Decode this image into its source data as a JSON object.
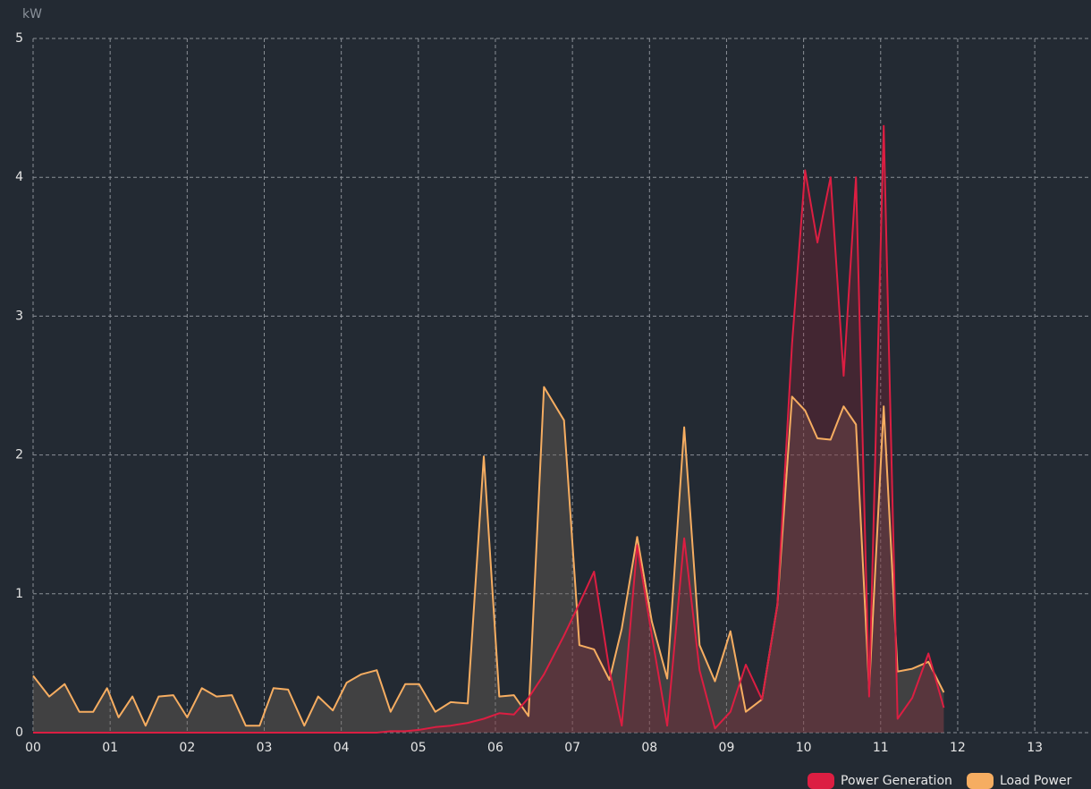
{
  "chart_data": {
    "type": "area",
    "y_label": "kW",
    "x": [
      0,
      0.21,
      0.41,
      0.6,
      0.78,
      0.96,
      1.11,
      1.29,
      1.46,
      1.63,
      1.82,
      2.0,
      2.19,
      2.38,
      2.58,
      2.76,
      2.94,
      3.12,
      3.31,
      3.52,
      3.7,
      3.89,
      4.07,
      4.26,
      4.46,
      4.64,
      4.83,
      5.01,
      5.22,
      5.42,
      5.64,
      5.85,
      6.05,
      6.24,
      6.43,
      6.63,
      6.89,
      7.09,
      7.28,
      7.48,
      7.64,
      7.84,
      8.03,
      8.23,
      8.45,
      8.65,
      8.85,
      9.05,
      9.25,
      9.46,
      9.66,
      9.85,
      10.02,
      10.18,
      10.35,
      10.52,
      10.68,
      10.85,
      11.04,
      11.22,
      11.41,
      11.62,
      11.82
    ],
    "series": [
      {
        "name": "Power Generation",
        "color": "#dc1e42",
        "fill": "rgba(150,30,50,0.28)",
        "values": [
          0,
          0,
          0,
          0,
          0,
          0,
          0,
          0,
          0,
          0,
          0,
          0,
          0,
          0,
          0,
          0,
          0,
          0,
          0,
          0,
          0,
          0,
          0,
          0,
          0,
          0.01,
          0.01,
          0.02,
          0.04,
          0.05,
          0.07,
          0.1,
          0.14,
          0.13,
          0.25,
          0.42,
          0.7,
          0.93,
          1.16,
          0.45,
          0.05,
          1.35,
          0.7,
          0.05,
          1.4,
          0.45,
          0.03,
          0.15,
          0.49,
          0.24,
          0.92,
          2.8,
          4.05,
          3.53,
          4.0,
          2.57,
          4.0,
          0.26,
          4.37,
          0.1,
          0.25,
          0.57,
          0.18
        ]
      },
      {
        "name": "Load Power",
        "color": "#f6ad61",
        "fill": "rgba(110,100,90,0.4)",
        "values": [
          0.41,
          0.26,
          0.35,
          0.15,
          0.15,
          0.32,
          0.11,
          0.26,
          0.05,
          0.26,
          0.27,
          0.11,
          0.32,
          0.26,
          0.27,
          0.05,
          0.05,
          0.32,
          0.31,
          0.05,
          0.26,
          0.16,
          0.36,
          0.42,
          0.45,
          0.15,
          0.35,
          0.35,
          0.15,
          0.22,
          0.21,
          1.99,
          0.26,
          0.27,
          0.12,
          2.49,
          2.25,
          0.63,
          0.6,
          0.38,
          0.75,
          1.41,
          0.8,
          0.39,
          2.2,
          0.63,
          0.37,
          0.73,
          0.15,
          0.24,
          0.92,
          2.42,
          2.32,
          2.12,
          2.11,
          2.35,
          2.22,
          0.31,
          2.35,
          0.44,
          0.46,
          0.51,
          0.29
        ]
      }
    ],
    "xlim": [
      0,
      13.73
    ],
    "xticks": [
      {
        "value": 0,
        "label": "00"
      },
      {
        "value": 1,
        "label": "01"
      },
      {
        "value": 2,
        "label": "02"
      },
      {
        "value": 3,
        "label": "03"
      },
      {
        "value": 4,
        "label": "04"
      },
      {
        "value": 5,
        "label": "05"
      },
      {
        "value": 6,
        "label": "06"
      },
      {
        "value": 7,
        "label": "07"
      },
      {
        "value": 8,
        "label": "08"
      },
      {
        "value": 9,
        "label": "09"
      },
      {
        "value": 10,
        "label": "10"
      },
      {
        "value": 11,
        "label": "11"
      },
      {
        "value": 12,
        "label": "12"
      },
      {
        "value": 13,
        "label": "13"
      }
    ],
    "ylim": [
      0,
      5
    ],
    "yticks": [
      0,
      1,
      2,
      3,
      4,
      5
    ],
    "grid": true
  }
}
